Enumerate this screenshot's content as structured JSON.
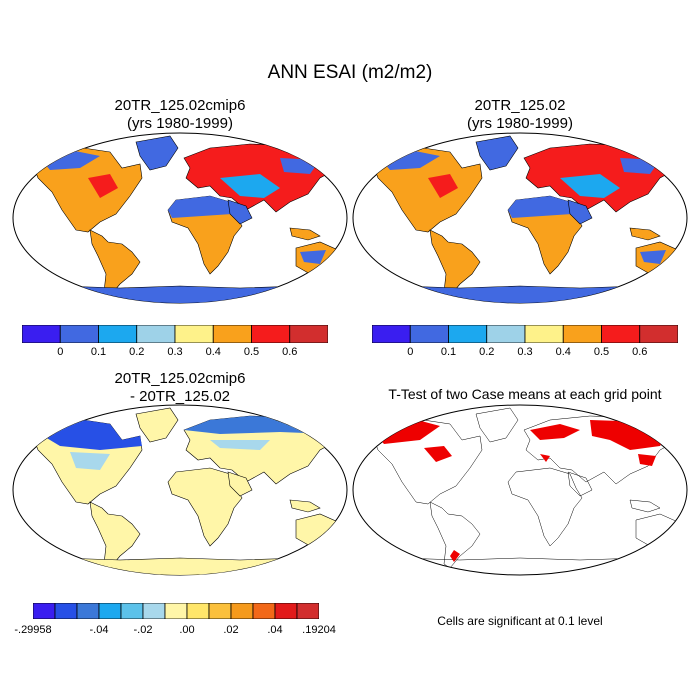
{
  "title": "ANN ESAI (m2/m2)",
  "panels": {
    "p1": {
      "title_line1": "20TR_125.02cmip6",
      "title_line2": "(yrs 1980-1999)"
    },
    "p2": {
      "title_line1": "20TR_125.02",
      "title_line2": "(yrs 1980-1999)"
    },
    "p3": {
      "title_line1": "20TR_125.02cmip6",
      "title_line2": "- 20TR_125.02"
    },
    "p4": {
      "title_line1": "T-Test of two Case means at each grid point",
      "note": "Cells are significant at 0.1 level"
    }
  },
  "colorbars": {
    "top": {
      "colors": [
        "#3a1ef0",
        "#4169e1",
        "#1ca8ef",
        "#9ed2e8",
        "#fef28a",
        "#f9a11c",
        "#f51c1c",
        "#d22e2e"
      ],
      "labels": [
        "0",
        "0.1",
        "0.2",
        "0.3",
        "0.4",
        "0.5",
        "0.6"
      ]
    },
    "diff": {
      "colors": [
        "#3a1ef0",
        "#2750e6",
        "#3b78d8",
        "#1ca8ef",
        "#5cc2ea",
        "#a8d8ec",
        "#fff6a8",
        "#ffe66a",
        "#fbc03c",
        "#f59a1c",
        "#f26818",
        "#e21a1a",
        "#d22e2e"
      ],
      "labels": [
        "-.29958",
        "-.04",
        "-.02",
        ".00",
        ".02",
        ".04",
        ".19204"
      ]
    }
  },
  "map_colors": {
    "antarctica_top": "#4169e1",
    "antarctica_diff": "#fff6a8",
    "ttest_significant": "#ee0000"
  }
}
